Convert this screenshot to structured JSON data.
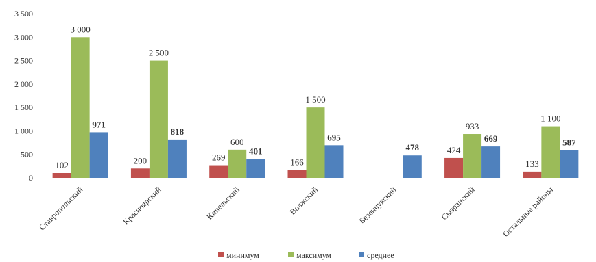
{
  "chart_data": {
    "type": "bar",
    "categories": [
      "Ставропольский",
      "Красноярский",
      "Кинельский",
      "Волжский",
      "Безенчукский",
      "Сызранский",
      "Остальные районы"
    ],
    "series": [
      {
        "name": "минимум",
        "color": "#c0504d",
        "values": [
          102,
          200,
          269,
          166,
          null,
          424,
          133
        ],
        "labels": [
          "102",
          "200",
          "269",
          "166",
          "",
          "424",
          "133"
        ]
      },
      {
        "name": "максимум",
        "color": "#9bbb59",
        "values": [
          3000,
          2500,
          600,
          1500,
          null,
          933,
          1100
        ],
        "labels": [
          "3 000",
          "2 500",
          "600",
          "1 500",
          "",
          "933",
          "1 100"
        ]
      },
      {
        "name": "среднее",
        "color": "#4f81bd",
        "values": [
          971,
          818,
          401,
          695,
          478,
          669,
          587
        ],
        "labels": [
          "971",
          "818",
          "401",
          "695",
          "478",
          "669",
          "587"
        ]
      }
    ],
    "yticks": [
      "0",
      "500",
      "1 000",
      "1 500",
      "2 000",
      "2 500",
      "3 000",
      "3 500"
    ],
    "ylim": [
      0,
      3500
    ],
    "grid": false,
    "legend": "bottom",
    "title": "",
    "xlabel": "",
    "ylabel": ""
  }
}
